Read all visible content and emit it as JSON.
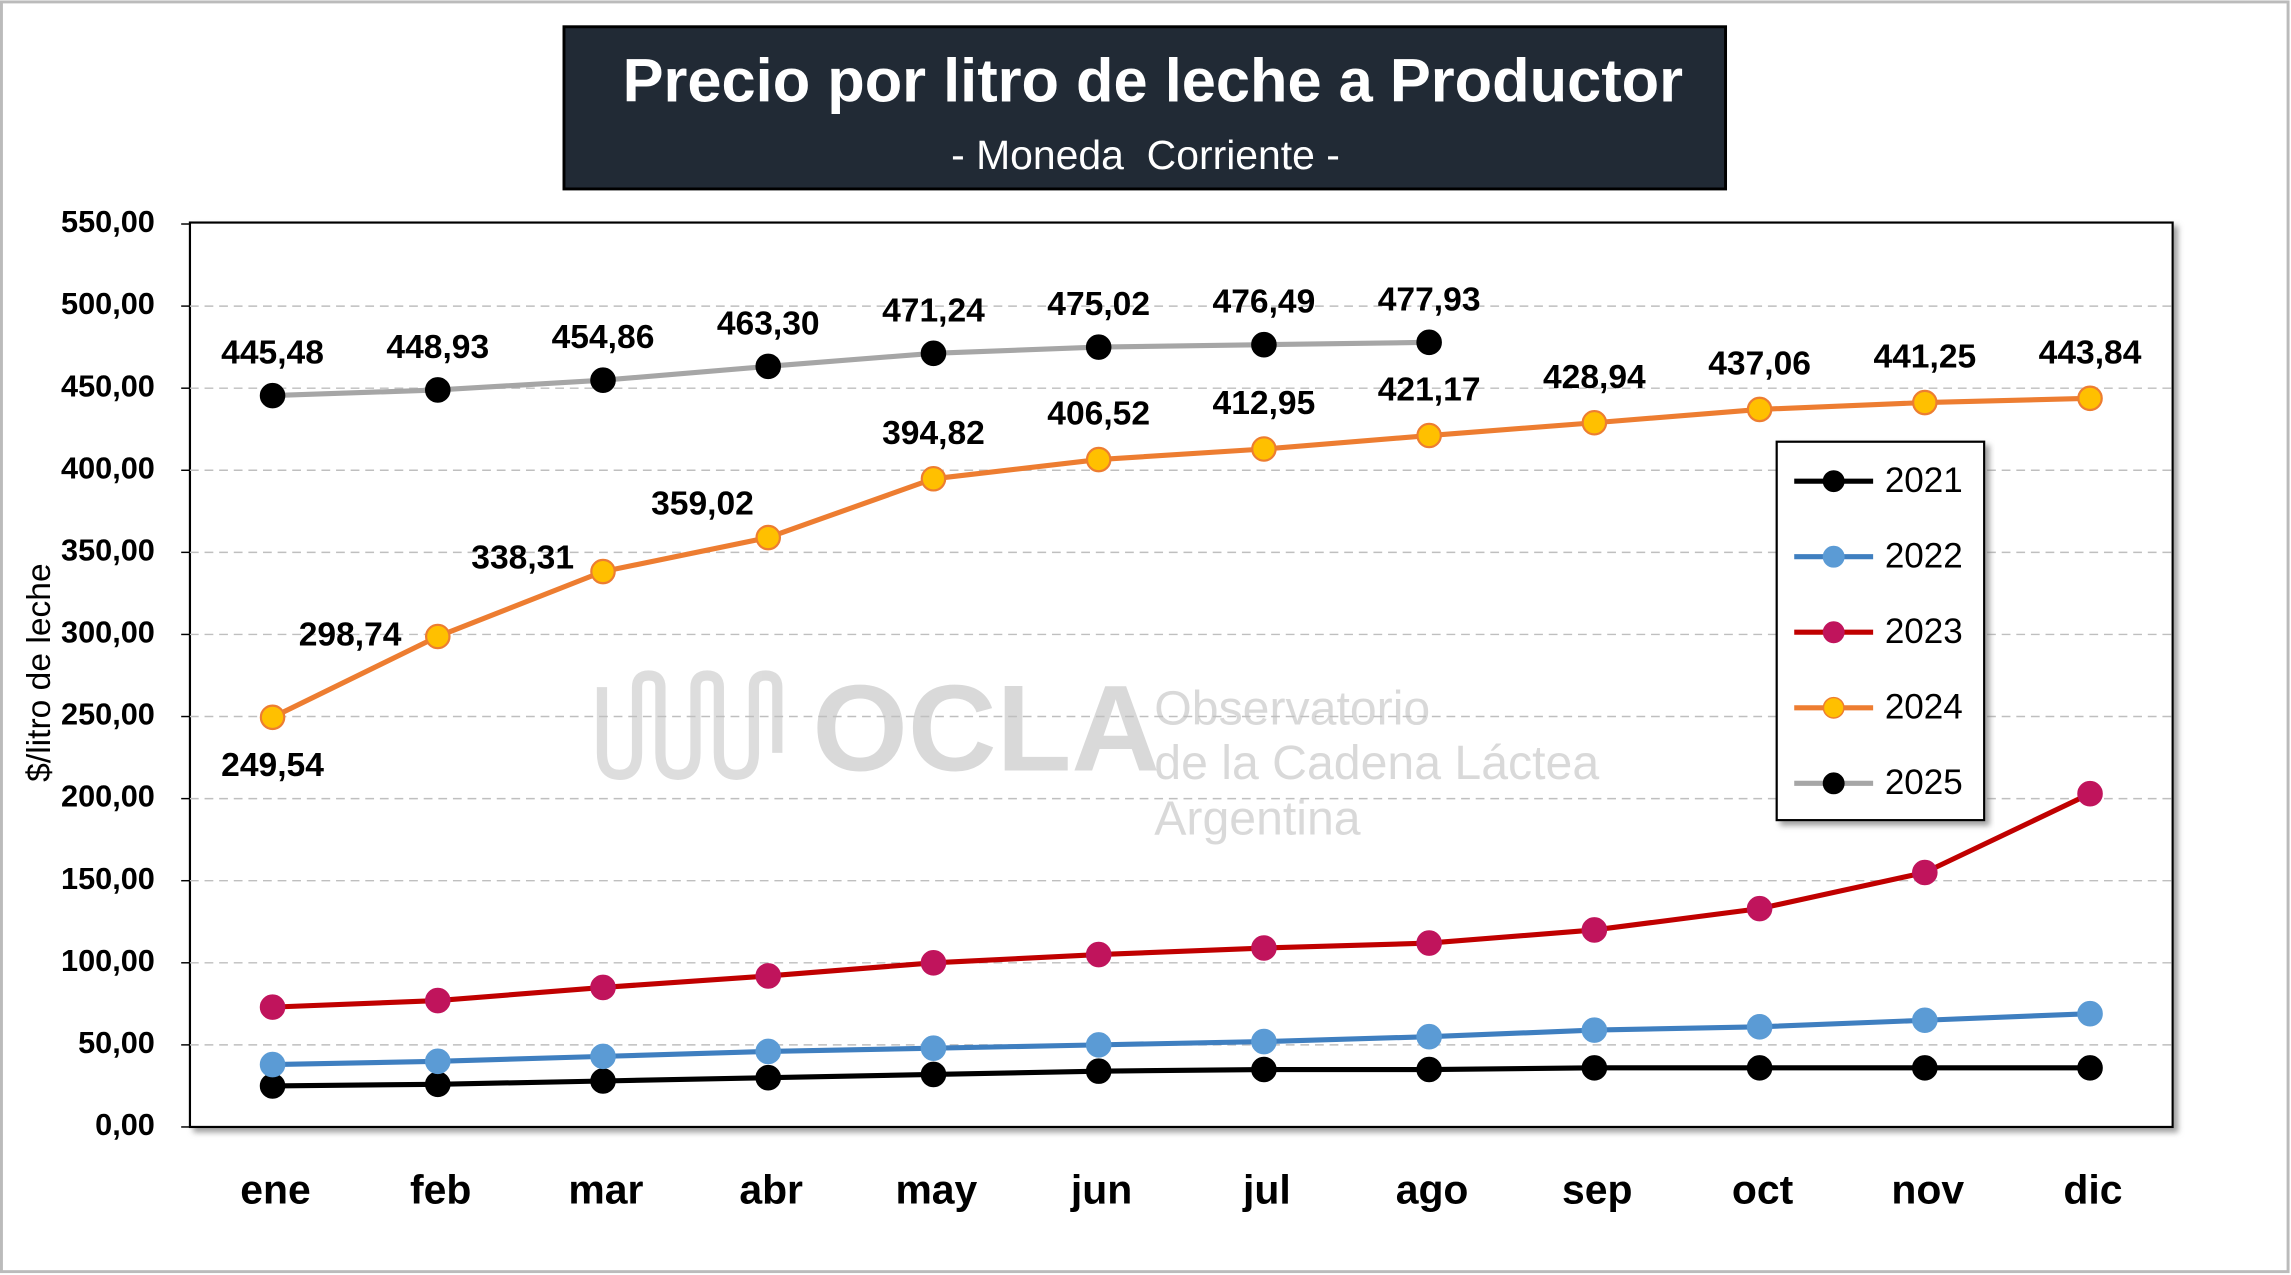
{
  "chart_data": {
    "type": "line",
    "title": "Precio por litro de leche a Productor",
    "subtitle": "- Moneda  Corriente -",
    "y_label": "$/litro de leche",
    "watermark": {
      "logo": "OCLA",
      "line1": "Observatorio",
      "line2": "de la Cadena Láctea",
      "line3": "Argentina"
    },
    "categories": [
      "ene",
      "feb",
      "mar",
      "abr",
      "may",
      "jun",
      "jul",
      "ago",
      "sep",
      "oct",
      "nov",
      "dic"
    ],
    "ylim": [
      0,
      550
    ],
    "yticks": [
      {
        "value": 0,
        "label": "0,00"
      },
      {
        "value": 50,
        "label": "50,00"
      },
      {
        "value": 100,
        "label": "100,00"
      },
      {
        "value": 150,
        "label": "150,00"
      },
      {
        "value": 200,
        "label": "200,00"
      },
      {
        "value": 250,
        "label": "250,00"
      },
      {
        "value": 300,
        "label": "300,00"
      },
      {
        "value": 350,
        "label": "350,00"
      },
      {
        "value": 400,
        "label": "400,00"
      },
      {
        "value": 450,
        "label": "450,00"
      },
      {
        "value": 500,
        "label": "500,00"
      },
      {
        "value": 550,
        "label": "550,00"
      }
    ],
    "grid": true,
    "legend": "right",
    "series": [
      {
        "name": "2021",
        "color": "#000000",
        "marker_color": "#000000",
        "values": [
          25,
          26,
          28,
          30,
          32,
          34,
          35,
          35,
          36,
          36,
          36,
          36
        ]
      },
      {
        "name": "2022",
        "color": "#3f7fc0",
        "marker_color": "#5b9bd5",
        "values": [
          38,
          40,
          43,
          46,
          48,
          50,
          52,
          55,
          59,
          61,
          65,
          69
        ]
      },
      {
        "name": "2023",
        "color": "#c00000",
        "marker_color": "#c0145c",
        "values": [
          73,
          77,
          85,
          92,
          100,
          105,
          109,
          112,
          120,
          133,
          155,
          203
        ]
      },
      {
        "name": "2024",
        "color": "#ed7d31",
        "marker_color": "#ffc000",
        "values": [
          249.54,
          298.74,
          338.31,
          359.02,
          394.82,
          406.52,
          412.95,
          421.17,
          428.94,
          437.06,
          441.25,
          443.84
        ],
        "value_labels": [
          "249,54",
          "298,74",
          "338,31",
          "359,02",
          "394,82",
          "406,52",
          "412,95",
          "421,17",
          "428,94",
          "437,06",
          "441,25",
          "443,84"
        ]
      },
      {
        "name": "2025",
        "color": "#a6a6a6",
        "marker_color": "#000000",
        "values": [
          445.48,
          448.93,
          454.86,
          463.3,
          471.24,
          475.02,
          476.49,
          477.93,
          null,
          null,
          null,
          null
        ],
        "value_labels": [
          "445,48",
          "448,93",
          "454,86",
          "463,30",
          "471,24",
          "475,02",
          "476,49",
          "477,93",
          null,
          null,
          null,
          null
        ]
      }
    ]
  }
}
